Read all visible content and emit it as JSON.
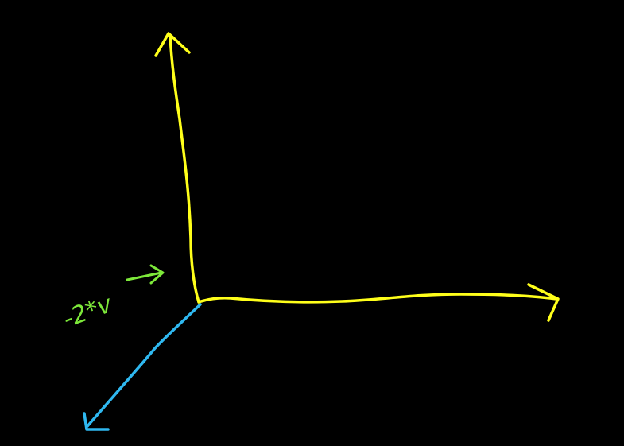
{
  "diagram": {
    "label": "-2*v"
  }
}
